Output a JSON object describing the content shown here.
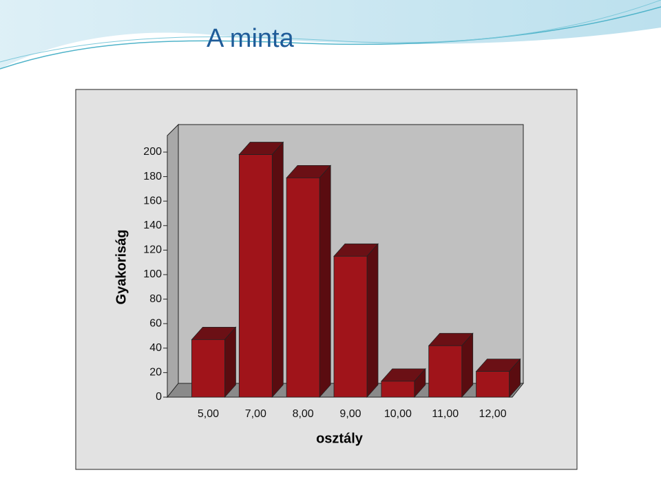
{
  "chart_data": {
    "type": "bar3d",
    "title": "A minta",
    "y_label": "Gyakoriság",
    "x_label": "osztály",
    "categories": [
      "5,00",
      "7,00",
      "8,00",
      "9,00",
      "10,00",
      "11,00",
      "12,00"
    ],
    "values": [
      47,
      198,
      179,
      115,
      13,
      42,
      21
    ],
    "color": "#a0141a",
    "ylim": [
      0,
      200
    ],
    "yticks": [
      0,
      20,
      40,
      60,
      80,
      100,
      120,
      140,
      160,
      180,
      200
    ]
  }
}
